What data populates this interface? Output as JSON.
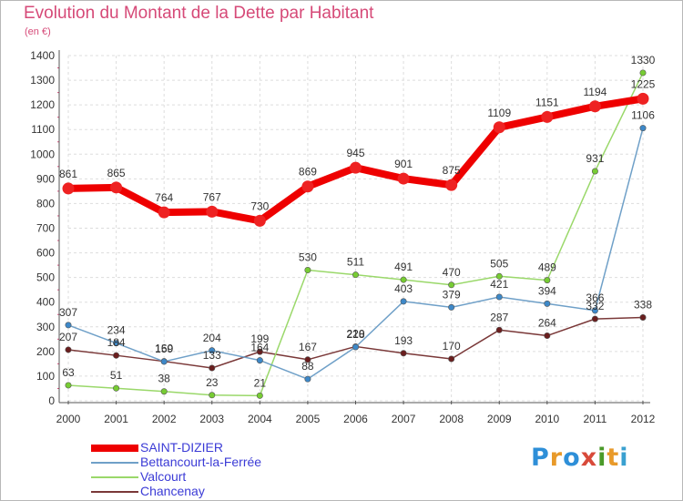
{
  "title": "Evolution du Montant de la Dette par Habitant",
  "unit": "(en €)",
  "logo": {
    "text": "Proxiti",
    "colors": [
      "#2e8fd8",
      "#e89a2a",
      "#2e8fd8",
      "#d84a3a",
      "#4a9a2a",
      "#e89a2a",
      "#3aa0d0"
    ]
  },
  "chart_data": {
    "type": "line",
    "x": [
      "2000",
      "2001",
      "2002",
      "2003",
      "2004",
      "2005",
      "2006",
      "2007",
      "2008",
      "2009",
      "2010",
      "2011",
      "2012"
    ],
    "ylim": [
      0,
      1400
    ],
    "yticks": [
      0,
      100,
      200,
      300,
      400,
      500,
      600,
      700,
      800,
      900,
      1000,
      1100,
      1200,
      1300,
      1400
    ],
    "grid": true,
    "legend_position": "bottom-left",
    "series": [
      {
        "name": "SAINT-DIZIER",
        "color": "#ee0000",
        "marker": "#ee2222",
        "width": 8,
        "values": [
          861,
          865,
          764,
          767,
          730,
          869,
          945,
          901,
          875,
          1109,
          1151,
          1194,
          1225
        ]
      },
      {
        "name": "Bettancourt-la-Ferrée",
        "color": "#6fa0c8",
        "marker": "#3d88c8",
        "width": 1.5,
        "values": [
          307,
          234,
          159,
          204,
          164,
          88,
          218,
          403,
          379,
          421,
          394,
          366,
          1106
        ]
      },
      {
        "name": "Valcourt",
        "color": "#9ad86a",
        "marker": "#77cc33",
        "width": 1.5,
        "values": [
          63,
          51,
          38,
          23,
          21,
          530,
          511,
          491,
          470,
          505,
          489,
          931,
          1330
        ]
      },
      {
        "name": "Chancenay",
        "color": "#7a3838",
        "marker": "#6a1e1e",
        "width": 1.5,
        "values": [
          207,
          184,
          160,
          133,
          199,
          167,
          220,
          193,
          170,
          287,
          264,
          332,
          338
        ]
      }
    ],
    "label_order": [
      "Chancenay",
      "Valcourt",
      "Bettancourt-la-Ferrée",
      "SAINT-DIZIER"
    ]
  }
}
